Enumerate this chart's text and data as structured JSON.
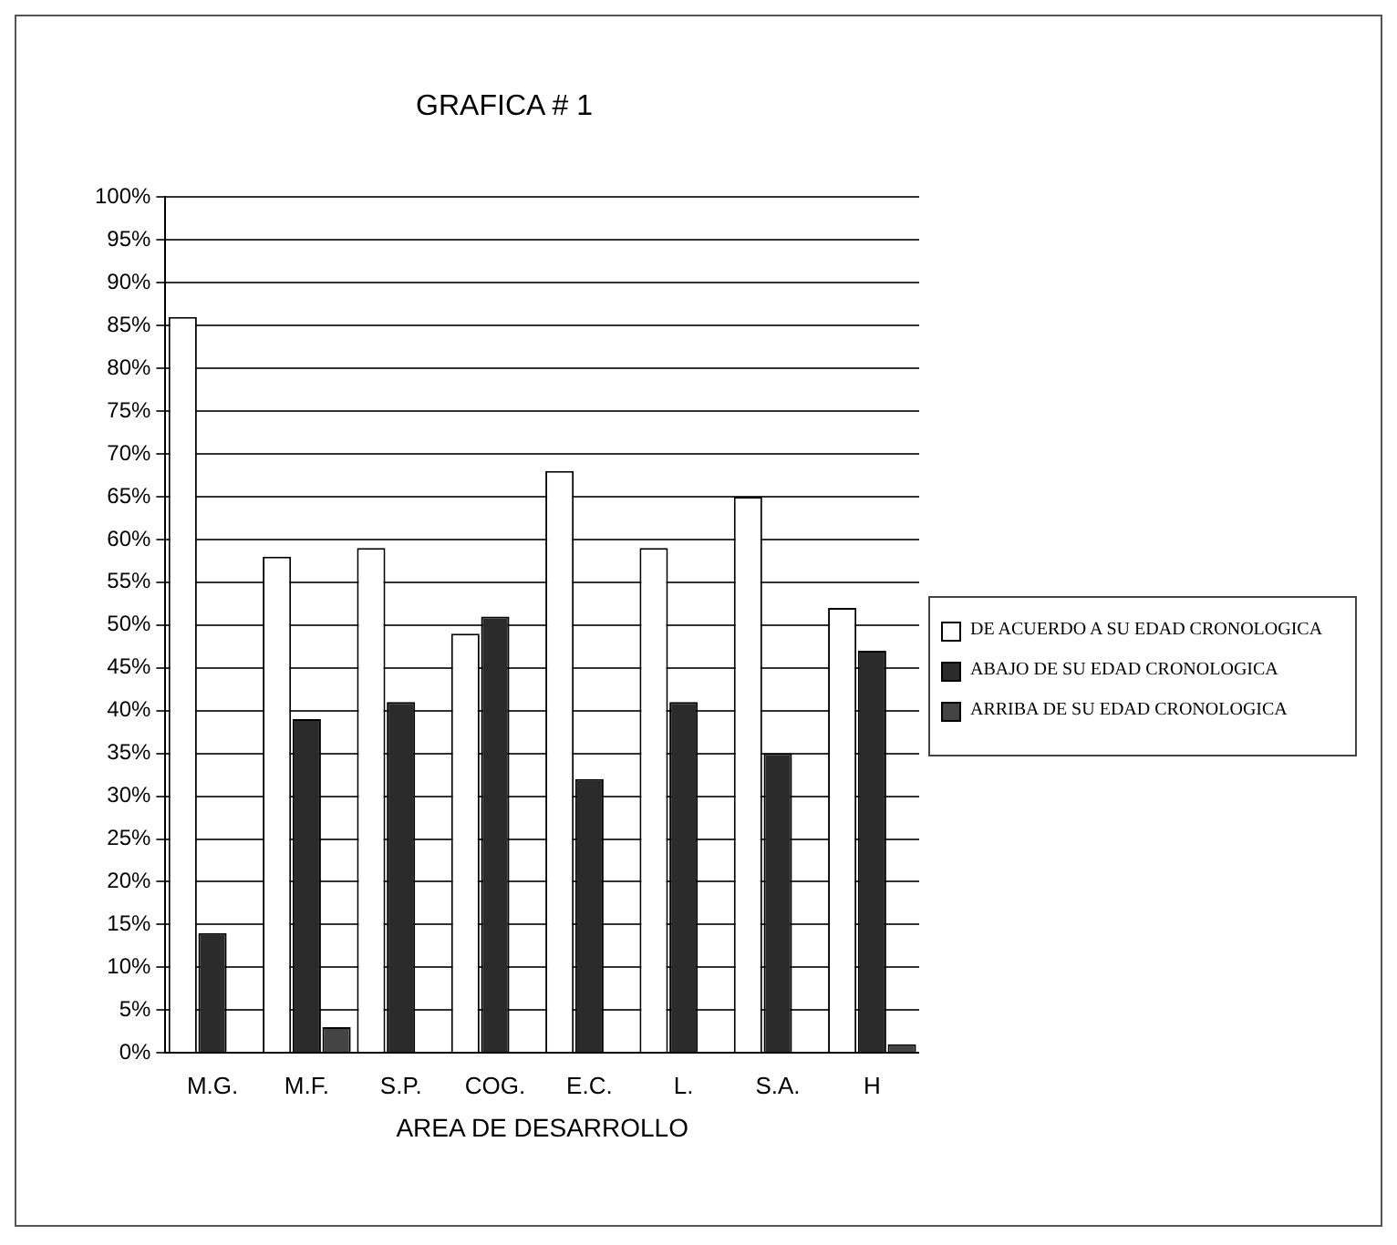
{
  "chart_data": {
    "type": "bar",
    "title": "GRAFICA # 1",
    "xlabel": "AREA DE DESARROLLO",
    "categories": [
      "M.G.",
      "M.F.",
      "S.P.",
      "COG.",
      "E.C.",
      "L.",
      "S.A.",
      "H"
    ],
    "series": [
      {
        "name": "DE ACUERDO A SU EDAD CRONOLOGICA",
        "color": "#ffffff",
        "values": [
          86,
          58,
          59,
          49,
          68,
          59,
          65,
          52
        ]
      },
      {
        "name": "ABAJO DE SU EDAD CRONOLOGICA",
        "color": "#2b2b2b",
        "values": [
          14,
          39,
          41,
          51,
          32,
          41,
          35,
          47
        ]
      },
      {
        "name": "ARRIBA DE SU EDAD CRONOLOGICA",
        "color": "#444444",
        "values": [
          0,
          3,
          0,
          0,
          0,
          0,
          0,
          1
        ]
      }
    ],
    "ylim": [
      0,
      100
    ],
    "yticks": [
      {
        "value": 0,
        "label": "0%"
      },
      {
        "value": 5,
        "label": "5%"
      },
      {
        "value": 10,
        "label": "10%"
      },
      {
        "value": 15,
        "label": "15%"
      },
      {
        "value": 20,
        "label": "20%"
      },
      {
        "value": 25,
        "label": "25%"
      },
      {
        "value": 30,
        "label": "30%"
      },
      {
        "value": 35,
        "label": "35%"
      },
      {
        "value": 40,
        "label": "40%"
      },
      {
        "value": 45,
        "label": "45%"
      },
      {
        "value": 50,
        "label": "50%"
      },
      {
        "value": 55,
        "label": "55%"
      },
      {
        "value": 60,
        "label": "60%"
      },
      {
        "value": 65,
        "label": "65%"
      },
      {
        "value": 70,
        "label": "70%"
      },
      {
        "value": 75,
        "label": "75%"
      },
      {
        "value": 80,
        "label": "80%"
      },
      {
        "value": 85,
        "label": "85%"
      },
      {
        "value": 90,
        "label": "90%"
      },
      {
        "value": 95,
        "label": "95%"
      },
      {
        "value": 100,
        "label": "100%"
      }
    ],
    "grid": "y",
    "legend": "right"
  }
}
